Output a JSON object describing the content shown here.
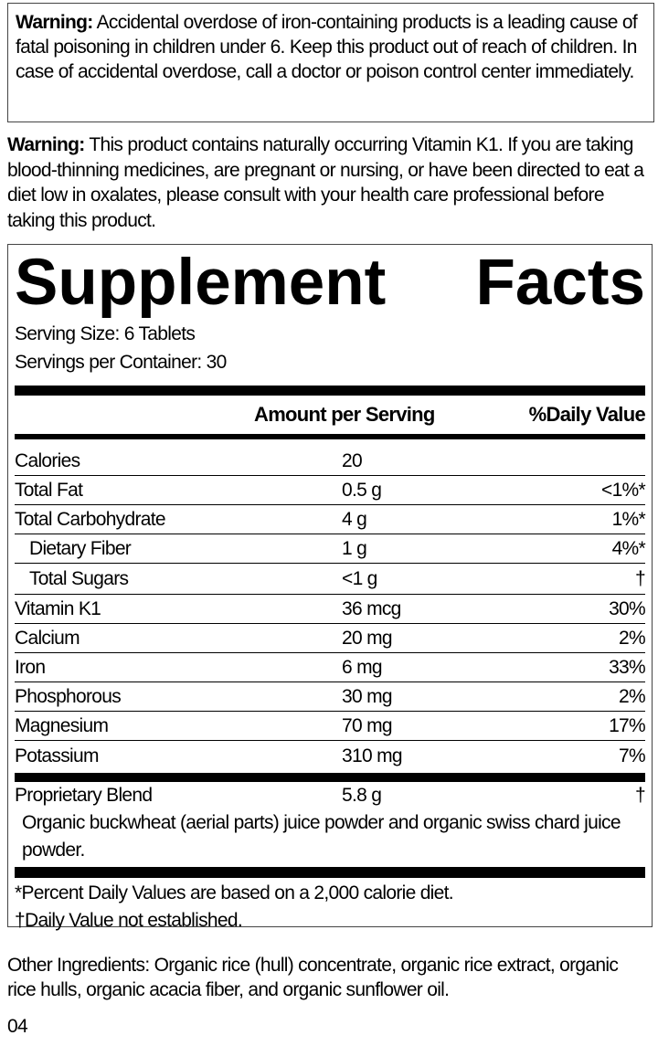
{
  "warning_iron": {
    "label": "Warning:",
    "text": " Accidental overdose of iron-containing products is a leading cause of fatal poisoning in children under 6. Keep this product out of reach of children. In case of accidental overdose, call a doctor or poison control center immediately."
  },
  "warning_k1": {
    "label": "Warning:",
    "text": " This product contains naturally occurring Vitamin K1. If you are taking blood-thinning medicines, are pregnant or nursing, or have been directed to eat a diet low in oxalates, please consult with your health care professional before taking this product."
  },
  "facts": {
    "title_1": "Supplement",
    "title_2": "Facts",
    "serving_size": "Serving Size: 6 Tablets",
    "servings_per_container": "Servings per Container: 30",
    "header_amount": "Amount per Serving",
    "header_dv": "%Daily Value",
    "rows": [
      {
        "name": "Calories",
        "amount": "20",
        "dv": ""
      },
      {
        "name": "Total Fat",
        "amount": "0.5 g",
        "dv": "<1%*"
      },
      {
        "name": "Total Carbohydrate",
        "amount": "4 g",
        "dv": "1%*"
      },
      {
        "name": "Dietary Fiber",
        "amount": "1 g",
        "dv": "4%*"
      },
      {
        "name": "Total Sugars",
        "amount": "<1 g",
        "dv": "†"
      },
      {
        "name": "Vitamin K1",
        "amount": "36 mcg",
        "dv": "30%"
      },
      {
        "name": "Calcium",
        "amount": "20 mg",
        "dv": "2%"
      },
      {
        "name": "Iron",
        "amount": "6 mg",
        "dv": "33%"
      },
      {
        "name": "Phosphorous",
        "amount": "30 mg",
        "dv": "2%"
      },
      {
        "name": "Magnesium",
        "amount": "70 mg",
        "dv": "17%"
      },
      {
        "name": "Potassium",
        "amount": "310 mg",
        "dv": "7%"
      }
    ],
    "blend": {
      "name": "Proprietary Blend",
      "amount": "5.8 g",
      "dv": "†",
      "description": "Organic buckwheat (aerial parts) juice powder and organic swiss chard juice powder."
    },
    "footnote_1": "*Percent Daily Values are based on a 2,000 calorie diet.",
    "footnote_2": "†Daily Value not established."
  },
  "other_ingredients": "Other Ingredients: Organic rice (hull) concentrate, organic rice extract, organic rice hulls, organic acacia fiber, and organic sunflower oil.",
  "code": "04"
}
